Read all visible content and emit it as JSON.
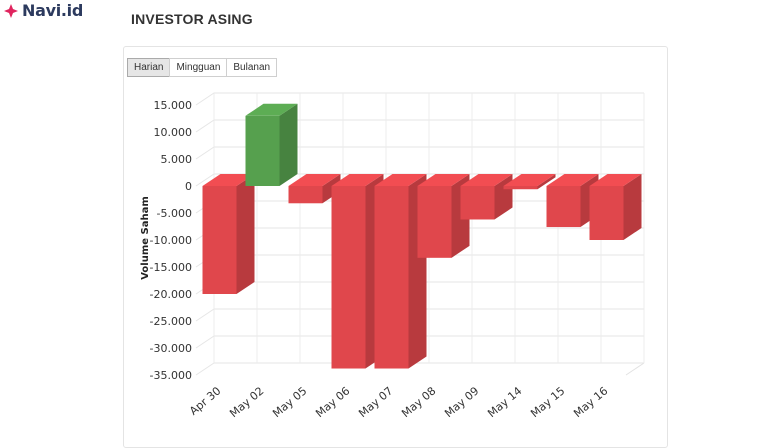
{
  "brand": {
    "name": "Navi.id",
    "icon": "diamond-sparkle-icon",
    "color": "#e0245e"
  },
  "page": {
    "title": "INVESTOR ASING"
  },
  "tabs": [
    {
      "label": "Harian",
      "active": true
    },
    {
      "label": "Mingguan",
      "active": false
    },
    {
      "label": "Bulanan",
      "active": false
    }
  ],
  "chart_data": {
    "type": "bar",
    "three_d": true,
    "categories": [
      "Apr 30",
      "May 02",
      "May 05",
      "May 06",
      "May 07",
      "May 08",
      "May 09",
      "May 14",
      "May 15",
      "May 16"
    ],
    "values": [
      -20000,
      13000,
      -3200,
      -33800,
      -33800,
      -13300,
      -6200,
      -600,
      -7600,
      -10000
    ],
    "ylabel": "Volume Saham",
    "ylim": [
      -35000,
      15000
    ],
    "yticks": [
      "15.000",
      "10.000",
      "5.000",
      "0",
      "-5.000",
      "-10.000",
      "-15.000",
      "-20.000",
      "-25.000",
      "-30.000",
      "-35.000"
    ],
    "ytick_values": [
      15000,
      10000,
      5000,
      0,
      -5000,
      -10000,
      -15000,
      -20000,
      -25000,
      -30000,
      -35000
    ],
    "colors": {
      "positive": "#56a04e",
      "negative": "#e0474c"
    },
    "grid": true,
    "legend": "none"
  }
}
